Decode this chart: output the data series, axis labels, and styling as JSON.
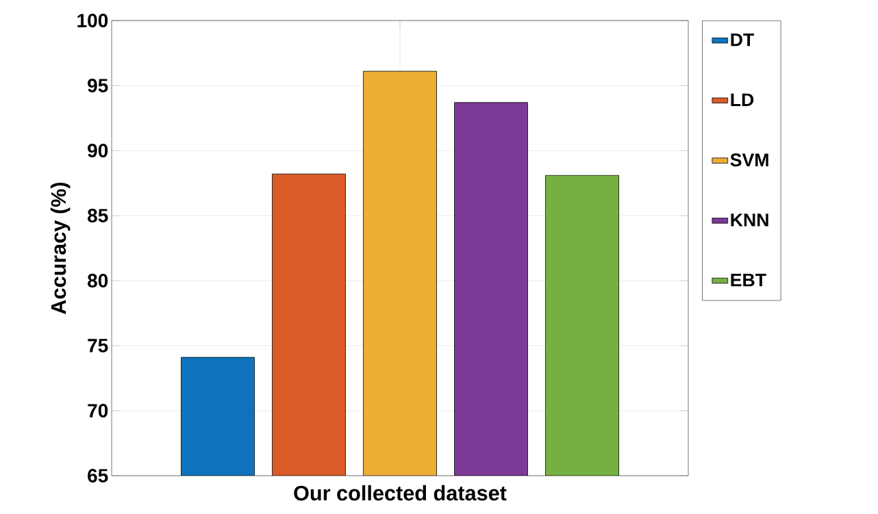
{
  "chart_data": {
    "type": "bar",
    "xlabel": "Our collected dataset",
    "ylabel": "Accuracy (%)",
    "categories": [
      null
    ],
    "series": [
      {
        "name": "DT",
        "color": "#0e72bd",
        "values": [
          74.1
        ]
      },
      {
        "name": "LD",
        "color": "#d95b27",
        "values": [
          88.2
        ]
      },
      {
        "name": "SVM",
        "color": "#ecae35",
        "values": [
          96.1
        ]
      },
      {
        "name": "KNN",
        "color": "#7b3a96",
        "values": [
          93.7
        ]
      },
      {
        "name": "EBT",
        "color": "#76b042",
        "values": [
          88.1
        ]
      }
    ],
    "ylim": [
      65,
      100
    ],
    "yticks": [
      65,
      70,
      75,
      80,
      85,
      90,
      95,
      100
    ],
    "grid": true,
    "legend": "right"
  }
}
